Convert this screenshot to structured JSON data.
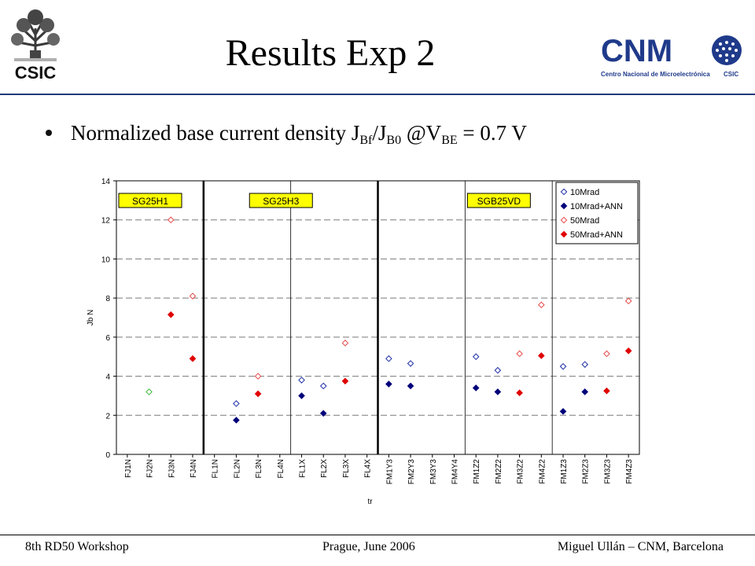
{
  "header": {
    "title": "Results Exp 2",
    "csic_logo_text": "CSIC",
    "cnm_logo_text": "CNM",
    "cnm_caption": "Centro Nacional de Microelectrónica",
    "cnm_caption_csic": "CSIC"
  },
  "bullet": {
    "text_main": "Normalized base current density J",
    "sub_bf": "Bf",
    "slash": "/J",
    "sub_b0": "B0",
    "at_v": " @V",
    "sub_be": "BE",
    "tail": " = 0.7 V"
  },
  "colors": {
    "rule": "#1f3a7a",
    "s10": "#1f2fa8",
    "s10ann": "#00007a",
    "s50": "#e84a4a",
    "s50ann": "#e00000",
    "green": "#3cb83c",
    "group_label_bg": "#ffff00"
  },
  "chart_data": {
    "type": "scatter",
    "xlabel": "tr",
    "ylabel": "Jb N",
    "ylim": [
      0,
      14
    ],
    "yticks": [
      0,
      2,
      4,
      6,
      8,
      10,
      12,
      14
    ],
    "grid": true,
    "legend_position": "top-right",
    "categories": [
      "FJ1N",
      "FJ2N",
      "FJ3N",
      "FJ4N",
      "FL1N",
      "FL2N",
      "FL3N",
      "FL4N",
      "FL1X",
      "FL2X",
      "FL3X",
      "FL4X",
      "FM1Y3",
      "FM2Y3",
      "FM3Y3",
      "FM4Y4",
      "FM1Z2",
      "FM2Z2",
      "FM3Z2",
      "FM4Z2",
      "FM1Z3",
      "FM2Z3",
      "FM3Z3",
      "FM4Z3"
    ],
    "group_labels": [
      {
        "label": "SG25H1",
        "category_index": 0
      },
      {
        "label": "SG25H3",
        "category_index": 6
      },
      {
        "label": "SGB25VD",
        "category_index": 16
      }
    ],
    "thick_separators_after_index": [
      3,
      11
    ],
    "thin_separators_after_index": [
      7,
      15,
      19
    ],
    "series": [
      {
        "name": "10Mrad",
        "marker": "open-diamond",
        "values": [
          null,
          null,
          null,
          null,
          null,
          2.6,
          null,
          null,
          3.8,
          3.5,
          null,
          null,
          4.9,
          4.65,
          null,
          null,
          5.0,
          4.3,
          null,
          null,
          4.5,
          4.6,
          null,
          null
        ]
      },
      {
        "name": "10Mrad+ANN",
        "marker": "filled-diamond",
        "values": [
          null,
          null,
          null,
          null,
          null,
          1.75,
          null,
          null,
          3.0,
          2.1,
          null,
          null,
          3.6,
          3.5,
          null,
          null,
          3.4,
          3.2,
          null,
          null,
          2.2,
          3.2,
          null,
          null
        ]
      },
      {
        "name": "50Mrad",
        "marker": "open-diamond",
        "values": [
          null,
          null,
          12.0,
          8.1,
          null,
          null,
          4.0,
          null,
          null,
          null,
          5.7,
          null,
          null,
          null,
          null,
          null,
          null,
          null,
          5.15,
          7.65,
          null,
          null,
          5.15,
          7.85
        ]
      },
      {
        "name": "50Mrad+ANN",
        "marker": "filled-diamond",
        "values": [
          null,
          null,
          7.15,
          4.9,
          null,
          null,
          3.1,
          null,
          null,
          null,
          3.75,
          null,
          null,
          null,
          null,
          null,
          null,
          null,
          3.15,
          5.05,
          null,
          null,
          3.25,
          5.3
        ]
      }
    ],
    "extra_points": [
      {
        "category_index": 1,
        "value": 3.2,
        "marker": "open-diamond",
        "color": "green"
      }
    ]
  },
  "footer": {
    "left": "8th RD50 Workshop",
    "middle": "Prague, June 2006",
    "right": "Miguel Ullán – CNM, Barcelona"
  }
}
